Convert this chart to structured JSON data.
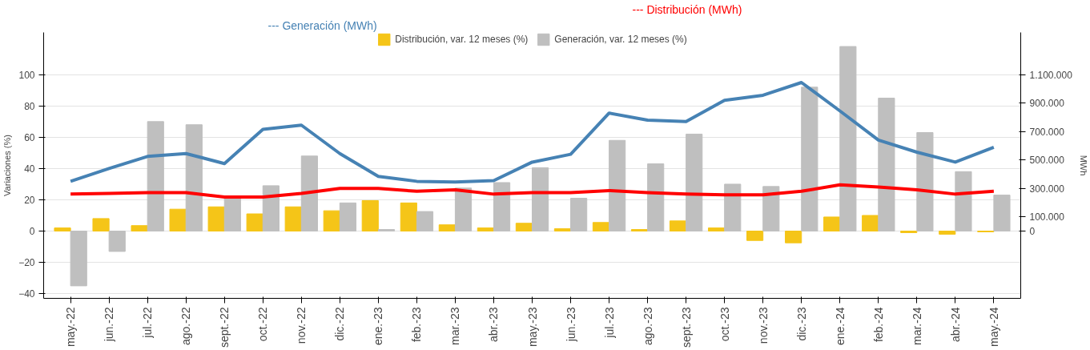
{
  "chart_data": {
    "type": "bar",
    "categories": [
      "may.-22",
      "jun.-22",
      "jul.-22",
      "ago.-22",
      "sept.-22",
      "oct.-22",
      "nov.-22",
      "dic.-22",
      "ene.-23",
      "feb.-23",
      "mar.-23",
      "abr.-23",
      "may.-23",
      "jun.-23",
      "jul.-23",
      "ago.-23",
      "sept.-23",
      "oct.-23",
      "nov.-23",
      "dic.-23",
      "ene.-24",
      "feb.-24",
      "mar.-24",
      "abr.-24",
      "may.-24"
    ],
    "series": [
      {
        "name": "Distribución, var. 12 meses (%)",
        "color": "#f5c518",
        "values": [
          2,
          8,
          3.5,
          14,
          15.5,
          11,
          15.5,
          13,
          19.5,
          18,
          4,
          2,
          5,
          1.5,
          5.5,
          1,
          6.5,
          2,
          -6,
          -7.5,
          9,
          10,
          -1,
          -2,
          -0.5
        ]
      },
      {
        "name": "Generación, var. 12 meses (%)",
        "color": "#bfbfbf",
        "values": [
          -35,
          -13,
          70,
          68,
          22,
          29,
          48,
          18,
          1,
          12.5,
          27.5,
          31,
          40.5,
          21,
          58,
          43,
          62,
          30,
          28.5,
          92,
          118,
          85,
          63,
          38,
          23
        ]
      },
      {
        "name": "--- Generación (MWh)",
        "type": "line",
        "axis": "y2",
        "color": "#4682b4",
        "values": [
          350000,
          440000,
          525000,
          545000,
          475000,
          715000,
          745000,
          545000,
          385000,
          350000,
          345000,
          355000,
          485000,
          540000,
          830000,
          780000,
          770000,
          920000,
          955000,
          1045000,
          845000,
          640000,
          555000,
          485000,
          590000
        ]
      },
      {
        "name": "--- Distribución (MWh)",
        "type": "line",
        "axis": "y2",
        "color": "#ff0000",
        "values": [
          260000,
          265000,
          270000,
          270000,
          240000,
          240000,
          265000,
          300000,
          300000,
          280000,
          290000,
          260000,
          270000,
          270000,
          285000,
          270000,
          260000,
          255000,
          255000,
          280000,
          325000,
          310000,
          290000,
          260000,
          280000
        ]
      }
    ],
    "ylabel": "Variaciones (%)",
    "y2label": "MWh",
    "ylim": [
      -43,
      127
    ],
    "yticks": [
      -40,
      -20,
      0,
      20,
      40,
      60,
      80,
      100
    ],
    "y2lim": [
      -473000,
      1397000
    ],
    "y2ticks": [
      {
        "value": 0,
        "label": "0"
      },
      {
        "value": 100000,
        "label": "100.000"
      },
      {
        "value": 300000,
        "label": "300.000"
      },
      {
        "value": 500000,
        "label": "500.000"
      },
      {
        "value": 700000,
        "label": "700.000"
      },
      {
        "value": 900000,
        "label": "900.000"
      },
      {
        "value": 1100000,
        "label": "1.100.000"
      }
    ],
    "grid": "y",
    "legend": "top"
  }
}
